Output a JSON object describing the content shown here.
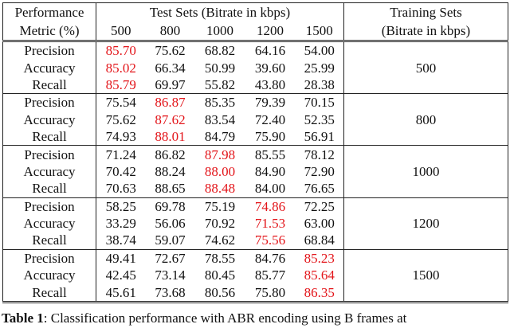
{
  "header": {
    "metric_label": [
      "Performance",
      "Metric (%)"
    ],
    "test_label": "Test Sets (Bitrate in kbps)",
    "test_sets": [
      "500",
      "800",
      "1000",
      "1200",
      "1500"
    ],
    "training_label": [
      "Training Sets",
      "(Bitrate in kbps)"
    ]
  },
  "highlight_color": "#e3151a",
  "groups": [
    {
      "training": "500",
      "highlight": 0,
      "rows": [
        [
          "Precision",
          "85.70",
          "75.62",
          "68.82",
          "64.16",
          "54.00"
        ],
        [
          "Accuracy",
          "85.02",
          "66.34",
          "50.99",
          "39.60",
          "25.99"
        ],
        [
          "Recall",
          "85.79",
          "69.97",
          "55.82",
          "43.80",
          "28.38"
        ]
      ]
    },
    {
      "training": "800",
      "highlight": 1,
      "rows": [
        [
          "Precision",
          "75.54",
          "86.87",
          "85.35",
          "79.39",
          "70.15"
        ],
        [
          "Accuracy",
          "75.62",
          "87.62",
          "83.54",
          "72.40",
          "52.35"
        ],
        [
          "Recall",
          "74.93",
          "88.01",
          "84.79",
          "75.90",
          "56.91"
        ]
      ]
    },
    {
      "training": "1000",
      "highlight": 2,
      "rows": [
        [
          "Precision",
          "71.24",
          "86.82",
          "87.98",
          "85.55",
          "78.12"
        ],
        [
          "Accuracy",
          "70.42",
          "88.24",
          "88.00",
          "84.90",
          "72.90"
        ],
        [
          "Recall",
          "70.63",
          "88.65",
          "88.48",
          "84.00",
          "76.65"
        ]
      ]
    },
    {
      "training": "1200",
      "highlight": 3,
      "rows": [
        [
          "Precision",
          "58.25",
          "69.78",
          "75.19",
          "74.86",
          "72.25"
        ],
        [
          "Accuracy",
          "33.29",
          "56.06",
          "70.92",
          "71.53",
          "63.00"
        ],
        [
          "Recall",
          "38.74",
          "59.07",
          "74.62",
          "75.56",
          "68.84"
        ]
      ]
    },
    {
      "training": "1500",
      "highlight": 4,
      "rows": [
        [
          "Precision",
          "49.41",
          "72.67",
          "78.55",
          "84.76",
          "85.23"
        ],
        [
          "Accuracy",
          "42.45",
          "73.14",
          "80.45",
          "85.77",
          "85.64"
        ],
        [
          "Recall",
          "45.61",
          "73.68",
          "80.56",
          "75.80",
          "86.35"
        ]
      ]
    }
  ],
  "caption": {
    "label": "Table 1",
    "text": ": Classification performance with ABR encoding using B frames at"
  }
}
